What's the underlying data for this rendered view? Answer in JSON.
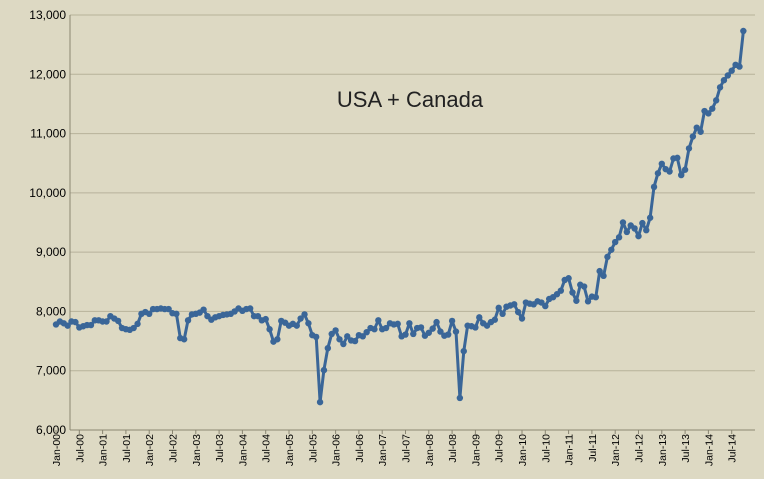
{
  "chart_data": {
    "type": "line",
    "title": "USA + Canada",
    "xlabel": "",
    "ylabel": "",
    "ylim": [
      6000,
      13000
    ],
    "yticks": [
      6000,
      7000,
      8000,
      9000,
      10000,
      11000,
      12000,
      13000
    ],
    "ytick_labels": [
      "6,000",
      "7,000",
      "8,000",
      "9,000",
      "10,000",
      "11,000",
      "12,000",
      "13,000"
    ],
    "xtick_labels": [
      "Jan-00",
      "Jul-00",
      "Jan-01",
      "Jul-01",
      "Jan-02",
      "Jul-02",
      "Jan-03",
      "Jul-03",
      "Jan-04",
      "Jul-04",
      "Jan-05",
      "Jul-05",
      "Jan-06",
      "Jul-06",
      "Jan-07",
      "Jul-07",
      "Jan-08",
      "Jul-08",
      "Jan-09",
      "Jul-09",
      "Jan-10",
      "Jul-10",
      "Jan-11",
      "Jul-11",
      "Jan-12",
      "Jul-12",
      "Jan-13",
      "Jul-13",
      "Jan-14",
      "Jul-14"
    ],
    "grid": true,
    "colors": {
      "background": "#ddd9c3",
      "line": "#3a6698",
      "grid": "#b7b29a"
    },
    "series": [
      {
        "x_start": "Jan-00",
        "x_step": "month",
        "values": [
          7780,
          7830,
          7800,
          7760,
          7830,
          7820,
          7730,
          7750,
          7770,
          7770,
          7850,
          7850,
          7830,
          7830,
          7920,
          7880,
          7840,
          7720,
          7700,
          7690,
          7720,
          7790,
          7960,
          7990,
          7960,
          8040,
          8040,
          8050,
          8040,
          8040,
          7970,
          7960,
          7550,
          7530,
          7850,
          7950,
          7960,
          7980,
          8030,
          7920,
          7860,
          7900,
          7920,
          7940,
          7950,
          7960,
          8000,
          8050,
          8010,
          8040,
          8050,
          7920,
          7920,
          7850,
          7870,
          7700,
          7490,
          7530,
          7840,
          7810,
          7760,
          7790,
          7760,
          7880,
          7950,
          7800,
          7600,
          7570,
          6470,
          7010,
          7380,
          7620,
          7680,
          7530,
          7450,
          7580,
          7510,
          7500,
          7600,
          7580,
          7650,
          7720,
          7700,
          7850,
          7700,
          7720,
          7800,
          7780,
          7790,
          7580,
          7610,
          7800,
          7620,
          7720,
          7730,
          7590,
          7640,
          7710,
          7820,
          7660,
          7590,
          7610,
          7840,
          7660,
          6540,
          7330,
          7760,
          7750,
          7730,
          7900,
          7800,
          7760,
          7820,
          7860,
          8060,
          7960,
          8080,
          8100,
          8120,
          7990,
          7880,
          8150,
          8130,
          8120,
          8170,
          8150,
          8090,
          8210,
          8240,
          8290,
          8350,
          8530,
          8560,
          8320,
          8180,
          8450,
          8420,
          8170,
          8250,
          8240,
          8680,
          8600,
          8920,
          9040,
          9170,
          9250,
          9500,
          9340,
          9450,
          9400,
          9270,
          9490,
          9370,
          9580,
          10100,
          10330,
          10490,
          10400,
          10360,
          10580,
          10590,
          10300,
          10390,
          10750,
          10950,
          11100,
          11030,
          11380,
          11340,
          11420,
          11560,
          11780,
          11900,
          11980,
          12060,
          12160,
          12130,
          12730
        ]
      }
    ]
  }
}
